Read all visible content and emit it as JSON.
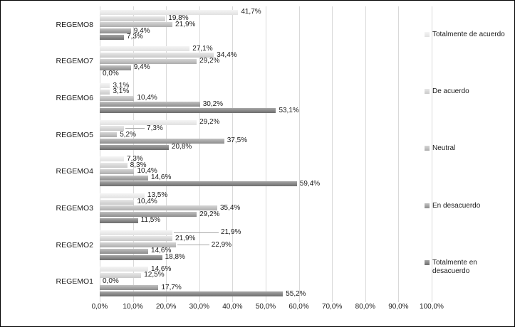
{
  "chart": {
    "background": "#ffffff",
    "frame_border_color": "#000000",
    "gridline_color": "#d9d9d9",
    "text_color": "#1a1a1a",
    "leader_line_color": "#a6a6a6"
  },
  "chart_data": {
    "type": "bar",
    "orientation": "horizontal",
    "title": "",
    "xlabel": "",
    "ylabel": "",
    "xlim": [
      0,
      100
    ],
    "grid": "vertical",
    "legend_position": "right",
    "value_label_format": "comma_decimal_percent_1dp",
    "x_tick_labels": [
      "0,0%",
      "10,0%",
      "20,0%",
      "30,0%",
      "40,0%",
      "50,0%",
      "60,0%",
      "70,0%",
      "80,0%",
      "90,0%",
      "100,0%"
    ],
    "categories": [
      "REGEMO8",
      "REGEMO7",
      "REGEMO6",
      "REGEMO5",
      "REGEMO4",
      "REGEMO3",
      "REGEMO2",
      "REGEMO1"
    ],
    "series": [
      {
        "name": "Totalmente de acuerdo",
        "color_top": "#f4f4f4",
        "color_bottom": "#e1e1e1",
        "values": [
          41.7,
          27.1,
          3.1,
          29.2,
          7.3,
          13.5,
          21.9,
          14.6
        ]
      },
      {
        "name": "De acuerdo",
        "color_top": "#e8e8e8",
        "color_bottom": "#c9c9c9",
        "values": [
          19.8,
          34.4,
          3.1,
          7.3,
          8.3,
          10.4,
          21.9,
          12.5
        ]
      },
      {
        "name": "Neutral",
        "color_top": "#d6d6d6",
        "color_bottom": "#adadad",
        "values": [
          21.9,
          29.2,
          10.4,
          5.2,
          10.4,
          35.4,
          22.9,
          0.0
        ]
      },
      {
        "name": "En desacuerdo",
        "color_top": "#c1c1c1",
        "color_bottom": "#8c8c8c",
        "values": [
          9.4,
          9.4,
          30.2,
          37.5,
          14.6,
          29.2,
          14.6,
          17.7
        ]
      },
      {
        "name": "Totalmente en desacuerdo",
        "color_top": "#a7a7a7",
        "color_bottom": "#6d6d6d",
        "values": [
          7.3,
          0.0,
          53.1,
          20.8,
          59.4,
          11.5,
          18.8,
          55.2
        ]
      }
    ],
    "label_overrides": [
      {
        "category": "REGEMO5",
        "series": "De acuerdo",
        "dx": 28,
        "leader": true
      },
      {
        "category": "REGEMO2",
        "series": "Totalmente de acuerdo",
        "dx": 64,
        "leader": true
      },
      {
        "category": "REGEMO2",
        "series": "Neutral",
        "dx": 46,
        "leader": true
      }
    ]
  }
}
